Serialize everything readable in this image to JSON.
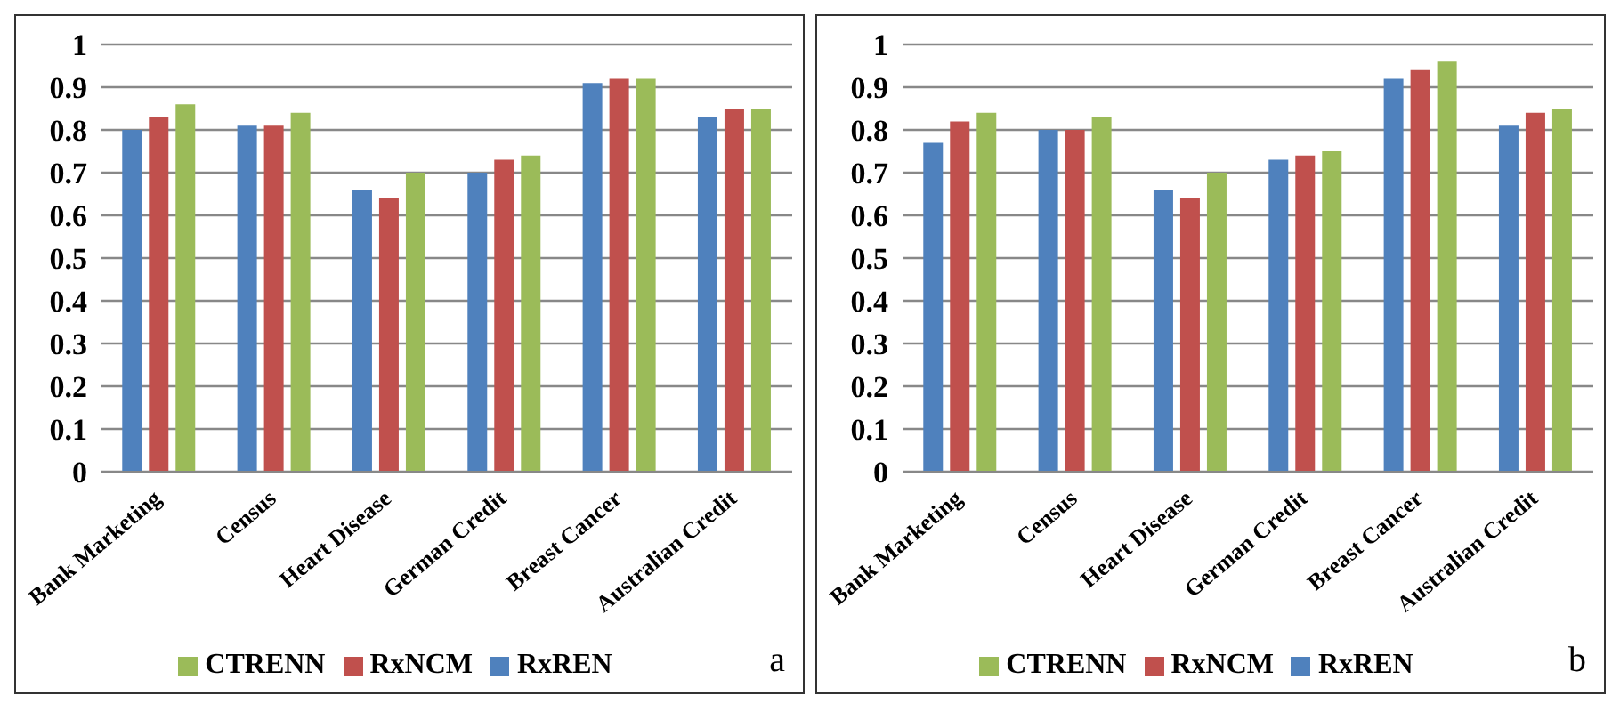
{
  "chart_data": [
    {
      "type": "bar",
      "categories": [
        "Bank Marketing",
        "Census",
        "Heart Disease",
        "German Credit",
        "Breast Cancer",
        "Australian Credit"
      ],
      "series": [
        {
          "name": "RxREN",
          "color": "#4f81bd",
          "values": [
            0.8,
            0.81,
            0.66,
            0.7,
            0.91,
            0.83
          ]
        },
        {
          "name": "RxNCM",
          "color": "#c0504d",
          "values": [
            0.83,
            0.81,
            0.64,
            0.73,
            0.92,
            0.85
          ]
        },
        {
          "name": "CTRENN",
          "color": "#9bbb59",
          "values": [
            0.86,
            0.84,
            0.7,
            0.74,
            0.92,
            0.85
          ]
        }
      ],
      "ylim": [
        0,
        1
      ],
      "yticks": [
        0,
        0.1,
        0.2,
        0.3,
        0.4,
        0.5,
        0.6,
        0.7,
        0.8,
        0.9,
        1
      ],
      "grid": "y",
      "legend": "bottom",
      "annotations": [
        "a"
      ]
    },
    {
      "type": "bar",
      "categories": [
        "Bank Marketing",
        "Census",
        "Heart Disease",
        "German Credit",
        "Breast Cancer",
        "Australian Credit"
      ],
      "series": [
        {
          "name": "RxREN",
          "color": "#4f81bd",
          "values": [
            0.77,
            0.8,
            0.66,
            0.73,
            0.92,
            0.81
          ]
        },
        {
          "name": "RxNCM",
          "color": "#c0504d",
          "values": [
            0.82,
            0.8,
            0.64,
            0.74,
            0.94,
            0.84
          ]
        },
        {
          "name": "CTRENN",
          "color": "#9bbb59",
          "values": [
            0.84,
            0.83,
            0.7,
            0.75,
            0.96,
            0.85
          ]
        }
      ],
      "ylim": [
        0,
        1
      ],
      "yticks": [
        0,
        0.1,
        0.2,
        0.3,
        0.4,
        0.5,
        0.6,
        0.7,
        0.8,
        0.9,
        1
      ],
      "grid": "y",
      "legend": "bottom",
      "annotations": [
        "b"
      ]
    }
  ]
}
